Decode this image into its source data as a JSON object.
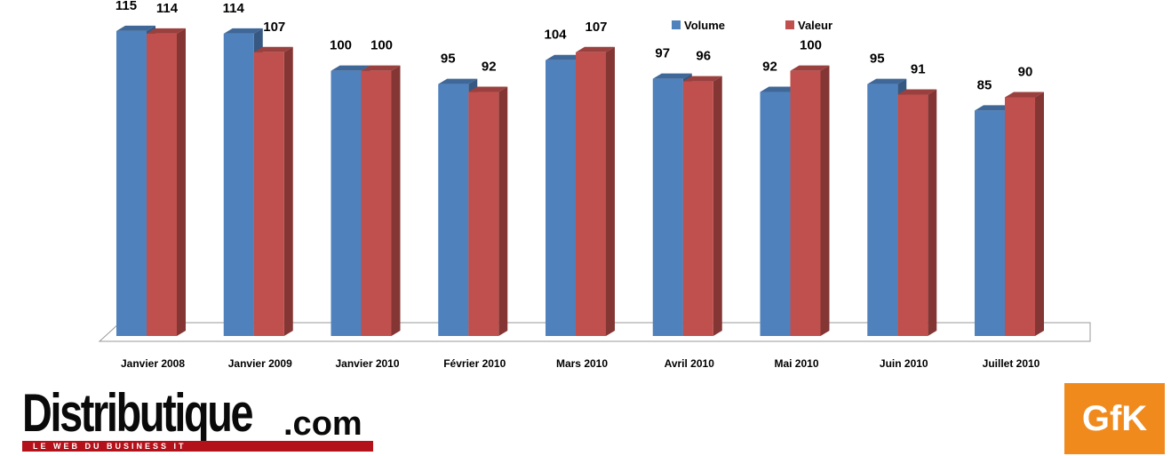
{
  "chart_data": {
    "type": "bar",
    "title": "",
    "xlabel": "",
    "ylabel": "",
    "ylim": [
      0,
      120
    ],
    "grid": false,
    "legend_position": "top-right",
    "categories": [
      "Janvier 2008",
      "Janvier 2009",
      "Janvier 2010",
      "Février 2010",
      "Mars 2010",
      "Avril 2010",
      "Mai 2010",
      "Juin 2010",
      "Juillet 2010"
    ],
    "series": [
      {
        "name": "Volume",
        "color": "#4f81bd",
        "values": [
          115,
          114,
          100,
          95,
          104,
          97,
          92,
          95,
          85
        ]
      },
      {
        "name": "Valeur",
        "color": "#c0504d",
        "values": [
          114,
          107,
          100,
          92,
          107,
          96,
          100,
          91,
          90
        ]
      }
    ]
  },
  "logos": {
    "distributique": {
      "name": "Distributique",
      "suffix": ".com",
      "tagline": "LE WEB DU BUSINESS IT",
      "bar_color": "#b4121a"
    },
    "gfk": {
      "name": "GfK",
      "color": "#f08a1c"
    }
  }
}
